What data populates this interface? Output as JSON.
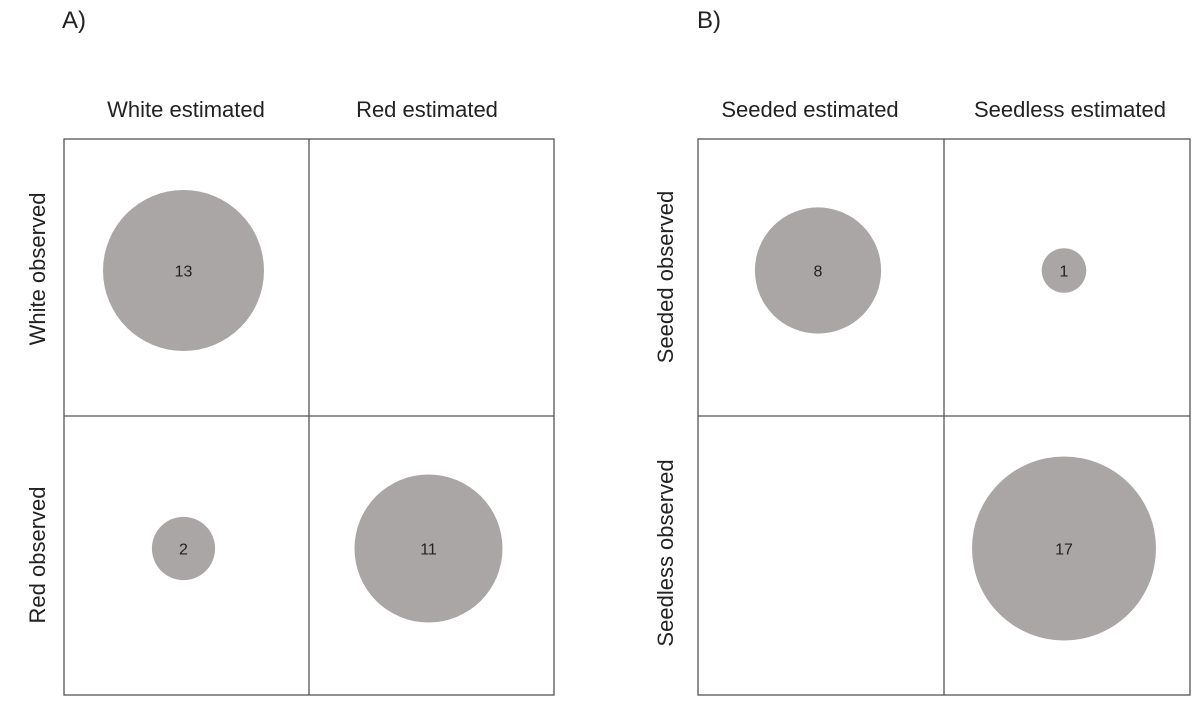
{
  "chart_data": [
    {
      "type": "bubble-matrix",
      "panel_label": "A)",
      "columns": [
        "White estimated",
        "Red estimated"
      ],
      "rows": [
        "White observed",
        "Red observed"
      ],
      "matrix": [
        [
          13,
          null
        ],
        [
          2,
          11
        ]
      ],
      "grid": true
    },
    {
      "type": "bubble-matrix",
      "panel_label": "B)",
      "columns": [
        "Seeded estimated",
        "Seedless estimated"
      ],
      "rows": [
        "Seeded observed",
        "Seedless observed"
      ],
      "matrix": [
        [
          8,
          1
        ],
        [
          null,
          17
        ]
      ],
      "grid": true
    }
  ],
  "colors": {
    "bubble": "#aaa6a6",
    "grid": "#555555",
    "text": "#222222"
  }
}
